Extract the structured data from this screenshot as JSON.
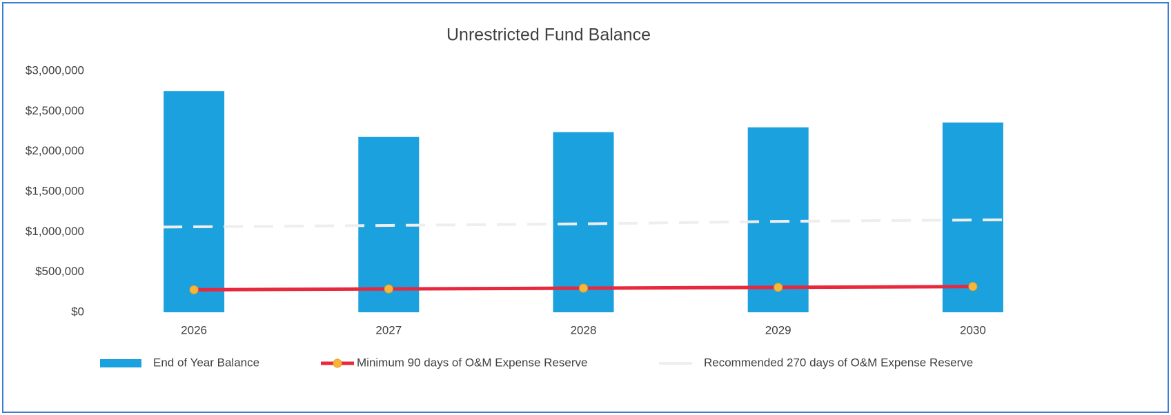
{
  "chart_data": {
    "type": "combo",
    "title": "Unrestricted Fund Balance",
    "categories": [
      "2026",
      "2027",
      "2028",
      "2029",
      "2030"
    ],
    "series": [
      {
        "name": "End of Year Balance",
        "type": "bar",
        "color": "#1ba1dd",
        "values": [
          2750000,
          2180000,
          2240000,
          2300000,
          2360000
        ]
      },
      {
        "name": "Minimum 90 days of O&M Expense Reserve",
        "type": "line",
        "color": "#e8283c",
        "marker": true,
        "marker_color": "#f7b53a",
        "values": [
          280000,
          290000,
          300000,
          310000,
          320000
        ]
      },
      {
        "name": "Recommended 270 days of O&M Expense Reserve",
        "type": "line",
        "color": "#eeeeee",
        "dashed": true,
        "values": [
          1060000,
          1080000,
          1100000,
          1130000,
          1150000
        ]
      }
    ],
    "ylim": [
      0,
      3000000
    ],
    "yticks": [
      {
        "value": 0,
        "label": "$0"
      },
      {
        "value": 500000,
        "label": "$500,000"
      },
      {
        "value": 1000000,
        "label": "$1,000,000"
      },
      {
        "value": 1500000,
        "label": "$1,500,000"
      },
      {
        "value": 2000000,
        "label": "$2,000,000"
      },
      {
        "value": 2500000,
        "label": "$2,500,000"
      },
      {
        "value": 3000000,
        "label": "$3,000,000"
      }
    ],
    "legend": "bottom"
  }
}
